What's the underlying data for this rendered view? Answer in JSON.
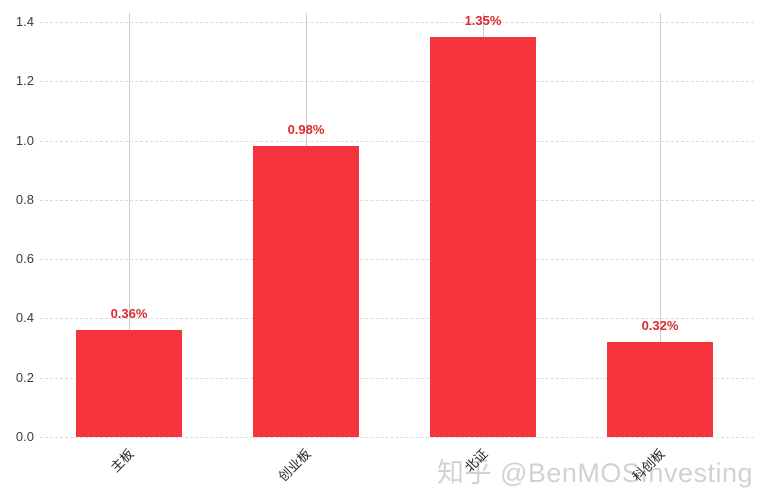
{
  "chart_data": {
    "type": "bar",
    "categories": [
      "主板",
      "创业板",
      "北证",
      "科创板"
    ],
    "values": [
      0.36,
      0.98,
      1.35,
      0.32
    ],
    "value_labels": [
      "0.36%",
      "0.98%",
      "1.35%",
      "0.32%"
    ],
    "title": "",
    "xlabel": "",
    "ylabel": "",
    "ylim": [
      0,
      1.4
    ],
    "yticks": [
      0.0,
      0.2,
      0.4,
      0.6,
      0.8,
      1.0,
      1.2,
      1.4
    ],
    "ytick_labels": [
      "0.0",
      "0.2",
      "0.4",
      "0.6",
      "0.8",
      "1.0",
      "1.2",
      "1.4"
    ],
    "grid": "horizontal dashed gridlines plus solid vertical line at each category center",
    "legend": "none",
    "bar_color": "#f5343d",
    "value_label_color": "#db2a31",
    "gridline_color": "#dbdbdb",
    "vertical_line_color": "#cccccc",
    "tick_label_color": "#3d3d3d",
    "category_label_color": "#262626"
  },
  "watermark": {
    "text": "知乎 @BenMOSInvesting",
    "color": "#d2d2d2"
  }
}
